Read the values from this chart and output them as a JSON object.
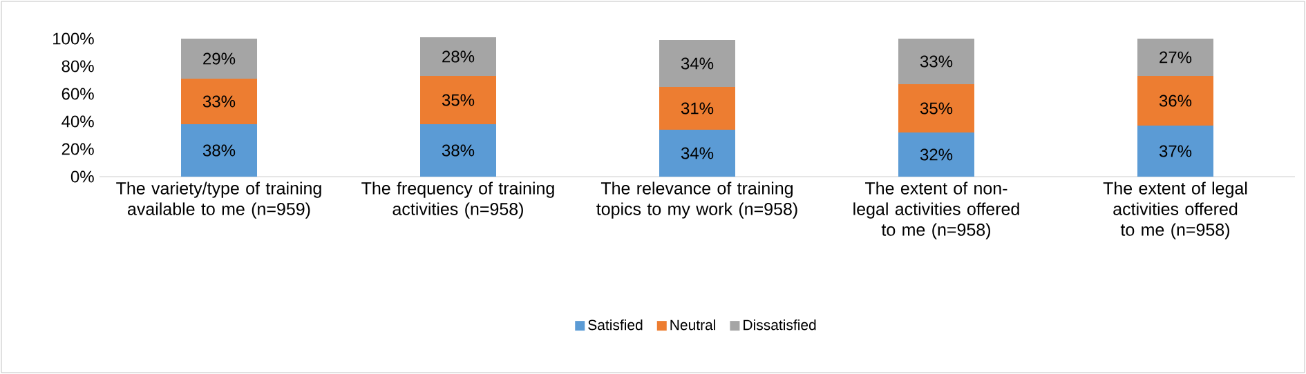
{
  "chart_data": {
    "type": "bar",
    "stacked": true,
    "categories": [
      "The variety/type of training available to me (n=959)",
      "The frequency of training activities (n=958)",
      "The relevance of training topics to my work (n=958)",
      "The extent of non-legal activities offered to me (n=958)",
      "The extent of legal activities offered to me (n=958)"
    ],
    "series": [
      {
        "name": "Satisfied",
        "color": "#5b9bd5",
        "values": [
          38,
          38,
          34,
          32,
          37
        ],
        "value_labels": [
          "38%",
          "38%",
          "34%",
          "32%",
          "37%"
        ]
      },
      {
        "name": "Neutral",
        "color": "#ed7d31",
        "values": [
          33,
          35,
          31,
          35,
          36
        ],
        "value_labels": [
          "33%",
          "35%",
          "31%",
          "35%",
          "36%"
        ]
      },
      {
        "name": "Dissatisfied",
        "color": "#a5a5a5",
        "values": [
          29,
          28,
          34,
          33,
          27
        ],
        "value_labels": [
          "29%",
          "28%",
          "34%",
          "33%",
          "27%"
        ]
      }
    ],
    "ylim": [
      0,
      101
    ],
    "yticks": [
      {
        "value": 0,
        "label": "0%"
      },
      {
        "value": 20,
        "label": "20%"
      },
      {
        "value": 40,
        "label": "40%"
      },
      {
        "value": 60,
        "label": "60%"
      },
      {
        "value": 80,
        "label": "80%"
      },
      {
        "value": 100,
        "label": "100%"
      }
    ],
    "legend": "bottom"
  }
}
